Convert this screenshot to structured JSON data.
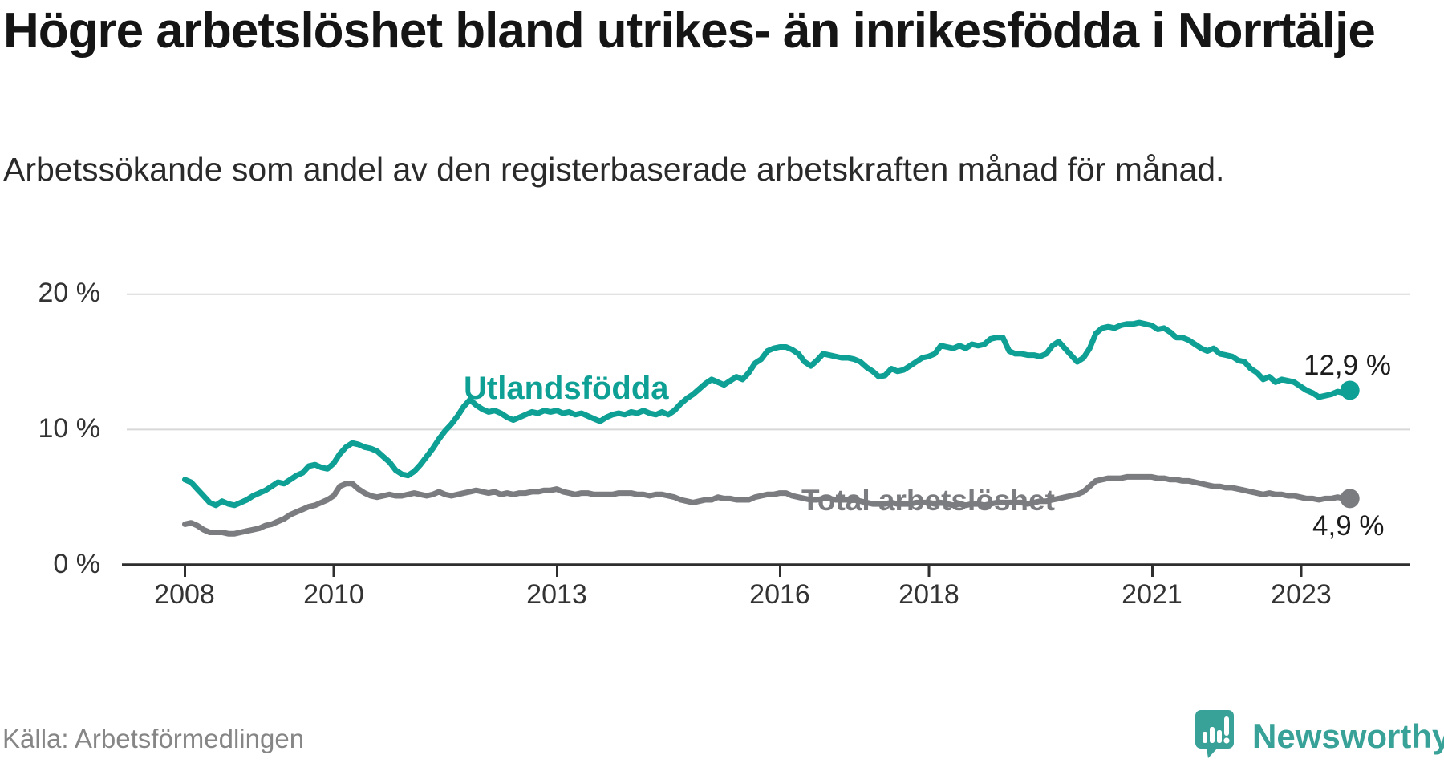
{
  "header": {
    "title": "Högre arbetslöshet bland utrikes- än inrikesfödda i Norrtälje",
    "subtitle": "Arbetssökande som andel av den registerbaserade arbetskraften månad för månad."
  },
  "footer": {
    "source": "Källa: Arbetsförmedlingen",
    "brand": "Newsworthy"
  },
  "chart_data": {
    "type": "line",
    "title": "Högre arbetslöshet bland utrikes- än inrikesfödda i Norrtälje",
    "subtitle": "Arbetssökande som andel av den registerbaserade arbetskraften månad för månad.",
    "unit": "%",
    "frequency": "monthly",
    "x_start": "2008-01",
    "x_end": "2023-09",
    "ylim": [
      0,
      20
    ],
    "grid": "horizontal-only",
    "legend_position": "inline-labels",
    "y_ticks": [
      "0 %",
      "10 %",
      "20 %"
    ],
    "x_ticks": [
      "2008",
      "2010",
      "2013",
      "2016",
      "2018",
      "2021",
      "2023"
    ],
    "series": [
      {
        "name": "Utlandsfödda",
        "color": "#0ea094",
        "end_label": "12,9 %",
        "values": [
          6.3,
          6.1,
          5.6,
          5.1,
          4.6,
          4.4,
          4.7,
          4.5,
          4.4,
          4.6,
          4.8,
          5.1,
          5.3,
          5.5,
          5.8,
          6.1,
          6.0,
          6.3,
          6.6,
          6.8,
          7.3,
          7.4,
          7.2,
          7.1,
          7.5,
          8.2,
          8.7,
          9.0,
          8.9,
          8.7,
          8.6,
          8.4,
          8.0,
          7.6,
          7.0,
          6.7,
          6.6,
          6.9,
          7.4,
          8.0,
          8.6,
          9.3,
          9.9,
          10.4,
          11.0,
          11.7,
          12.2,
          11.8,
          11.5,
          11.3,
          11.4,
          11.2,
          10.9,
          10.7,
          10.9,
          11.1,
          11.3,
          11.2,
          11.4,
          11.3,
          11.4,
          11.2,
          11.3,
          11.1,
          11.2,
          11.0,
          10.8,
          10.6,
          10.9,
          11.1,
          11.2,
          11.1,
          11.3,
          11.2,
          11.4,
          11.2,
          11.1,
          11.3,
          11.1,
          11.4,
          11.9,
          12.3,
          12.6,
          13.0,
          13.4,
          13.7,
          13.5,
          13.3,
          13.6,
          13.9,
          13.7,
          14.2,
          14.9,
          15.2,
          15.8,
          16.0,
          16.1,
          16.1,
          15.9,
          15.6,
          15.0,
          14.7,
          15.1,
          15.6,
          15.5,
          15.4,
          15.3,
          15.3,
          15.2,
          15.0,
          14.6,
          14.3,
          13.9,
          14.0,
          14.5,
          14.3,
          14.4,
          14.7,
          15.0,
          15.3,
          15.4,
          15.6,
          16.2,
          16.1,
          16.0,
          16.2,
          16.0,
          16.3,
          16.2,
          16.3,
          16.7,
          16.8,
          16.8,
          15.8,
          15.6,
          15.6,
          15.5,
          15.5,
          15.4,
          15.6,
          16.2,
          16.5,
          16.0,
          15.5,
          15.0,
          15.3,
          16.0,
          17.1,
          17.5,
          17.6,
          17.5,
          17.7,
          17.8,
          17.8,
          17.9,
          17.8,
          17.7,
          17.4,
          17.5,
          17.2,
          16.8,
          16.8,
          16.6,
          16.3,
          16.0,
          15.8,
          16.0,
          15.6,
          15.5,
          15.4,
          15.1,
          15.0,
          14.5,
          14.2,
          13.7,
          13.9,
          13.5,
          13.7,
          13.6,
          13.5,
          13.2,
          12.9,
          12.7,
          12.4,
          12.5,
          12.6,
          12.8,
          12.7,
          12.9
        ]
      },
      {
        "name": "Total arbetslöshet",
        "color": "#7b7c80",
        "end_label": "4,9 %",
        "values": [
          3.0,
          3.1,
          2.9,
          2.6,
          2.4,
          2.4,
          2.4,
          2.3,
          2.3,
          2.4,
          2.5,
          2.6,
          2.7,
          2.9,
          3.0,
          3.2,
          3.4,
          3.7,
          3.9,
          4.1,
          4.3,
          4.4,
          4.6,
          4.8,
          5.1,
          5.8,
          6.0,
          6.0,
          5.6,
          5.3,
          5.1,
          5.0,
          5.1,
          5.2,
          5.1,
          5.1,
          5.2,
          5.3,
          5.2,
          5.1,
          5.2,
          5.4,
          5.2,
          5.1,
          5.2,
          5.3,
          5.4,
          5.5,
          5.4,
          5.3,
          5.4,
          5.2,
          5.3,
          5.2,
          5.3,
          5.3,
          5.4,
          5.4,
          5.5,
          5.5,
          5.6,
          5.4,
          5.3,
          5.2,
          5.3,
          5.3,
          5.2,
          5.2,
          5.2,
          5.2,
          5.3,
          5.3,
          5.3,
          5.2,
          5.2,
          5.1,
          5.2,
          5.2,
          5.1,
          5.0,
          4.8,
          4.7,
          4.6,
          4.7,
          4.8,
          4.8,
          5.0,
          4.9,
          4.9,
          4.8,
          4.8,
          4.8,
          5.0,
          5.1,
          5.2,
          5.2,
          5.3,
          5.3,
          5.1,
          5.0,
          4.9,
          4.8,
          4.8,
          4.9,
          4.9,
          4.8,
          4.8,
          4.8,
          4.8,
          4.7,
          4.6,
          4.5,
          4.5,
          4.5,
          4.6,
          4.5,
          4.5,
          4.5,
          4.6,
          4.6,
          4.6,
          4.5,
          4.6,
          4.5,
          4.4,
          4.5,
          4.4,
          4.5,
          4.5,
          4.4,
          4.5,
          4.6,
          4.6,
          4.6,
          4.6,
          4.6,
          4.5,
          4.6,
          4.7,
          4.7,
          4.8,
          4.9,
          5.0,
          5.1,
          5.2,
          5.4,
          5.8,
          6.2,
          6.3,
          6.4,
          6.4,
          6.4,
          6.5,
          6.5,
          6.5,
          6.5,
          6.5,
          6.4,
          6.4,
          6.3,
          6.3,
          6.2,
          6.2,
          6.1,
          6.0,
          5.9,
          5.8,
          5.8,
          5.7,
          5.7,
          5.6,
          5.5,
          5.4,
          5.3,
          5.2,
          5.3,
          5.2,
          5.2,
          5.1,
          5.1,
          5.0,
          4.9,
          4.9,
          4.8,
          4.9,
          4.9,
          5.0,
          4.9,
          4.9
        ]
      }
    ]
  }
}
